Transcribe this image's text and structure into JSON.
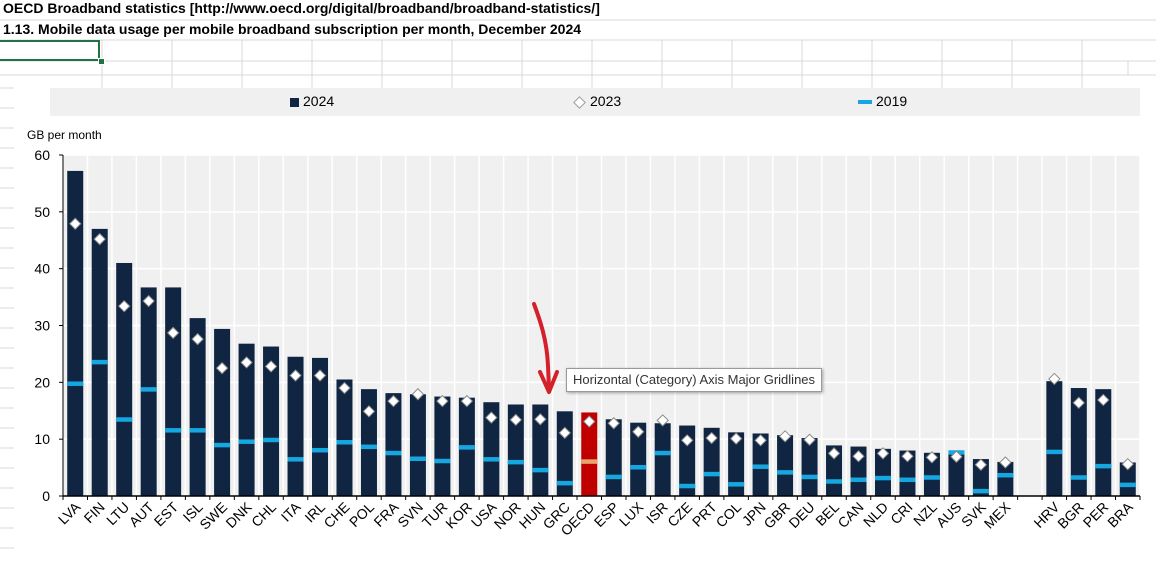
{
  "sheet": {
    "title_line_1": "OECD Broadband statistics [http://www.oecd.org/digital/broadband/broadband-statistics/]",
    "title_line_2": "1.13. Mobile data usage per mobile broadband subscription per month, December 2024"
  },
  "tooltip": "Horizontal (Category) Axis Major Gridlines",
  "colors": {
    "bar_2024": "#0f2541",
    "bar_oecd": "#c00000",
    "marker_2019": "#16a6e0",
    "marker_2019_oecd": "#e7a46b",
    "plot_bg": "#f0f0f0",
    "arrow": "#d4202a"
  },
  "chart_data": {
    "type": "bar",
    "title": "",
    "ylabel": "GB per month",
    "ylim": [
      0,
      60
    ],
    "yticks": [
      0,
      10,
      20,
      30,
      40,
      50,
      60
    ],
    "grid": true,
    "legend_position": "top",
    "categories": [
      "LVA",
      "FIN",
      "LTU",
      "AUT",
      "EST",
      "ISL",
      "SWE",
      "DNK",
      "CHL",
      "ITA",
      "IRL",
      "CHE",
      "POL",
      "FRA",
      "SVN",
      "TUR",
      "KOR",
      "USA",
      "NOR",
      "HUN",
      "GRC",
      "OECD",
      "ESP",
      "LUX",
      "ISR",
      "CZE",
      "PRT",
      "COL",
      "JPN",
      "GBR",
      "DEU",
      "BEL",
      "CAN",
      "NLD",
      "CRI",
      "NZL",
      "AUS",
      "SVK",
      "MEX",
      "",
      "HRV",
      "BGR",
      "PER",
      "BRA"
    ],
    "series": [
      {
        "name": "2024",
        "kind": "bar",
        "values": [
          57.2,
          47.0,
          41.0,
          36.7,
          36.7,
          31.3,
          29.4,
          26.8,
          26.3,
          24.5,
          24.3,
          20.5,
          18.8,
          18.1,
          17.9,
          17.5,
          17.3,
          16.5,
          16.1,
          16.1,
          14.9,
          14.7,
          13.5,
          12.9,
          12.8,
          12.4,
          12.0,
          11.2,
          11.0,
          10.7,
          10.2,
          8.9,
          8.7,
          8.3,
          8.0,
          7.6,
          7.5,
          6.5,
          6.0,
          null,
          20.2,
          19.0,
          18.8,
          5.9
        ]
      },
      {
        "name": "2023",
        "kind": "diamond",
        "values": [
          47.9,
          45.2,
          33.4,
          34.3,
          28.7,
          27.6,
          22.5,
          23.5,
          22.8,
          21.2,
          21.2,
          19.0,
          14.9,
          16.7,
          17.9,
          16.7,
          16.7,
          13.8,
          13.4,
          13.5,
          11.1,
          13.1,
          12.8,
          11.3,
          13.3,
          9.8,
          10.2,
          10.1,
          9.8,
          10.5,
          9.9,
          7.5,
          7.0,
          7.5,
          7.0,
          6.8,
          6.9,
          5.5,
          5.9,
          null,
          20.6,
          16.4,
          16.9,
          5.6
        ]
      },
      {
        "name": "2019",
        "kind": "dash",
        "values": [
          19.8,
          23.6,
          13.5,
          18.8,
          11.6,
          11.6,
          9.0,
          9.6,
          9.9,
          6.5,
          8.1,
          9.5,
          8.7,
          7.6,
          6.6,
          6.2,
          8.6,
          6.5,
          6.0,
          4.6,
          2.3,
          6.1,
          3.4,
          5.1,
          7.6,
          1.8,
          3.9,
          2.1,
          5.2,
          4.2,
          3.4,
          2.6,
          2.9,
          3.2,
          2.9,
          3.3,
          7.7,
          0.9,
          3.7,
          null,
          7.8,
          3.3,
          5.3,
          2.0
        ]
      }
    ]
  }
}
